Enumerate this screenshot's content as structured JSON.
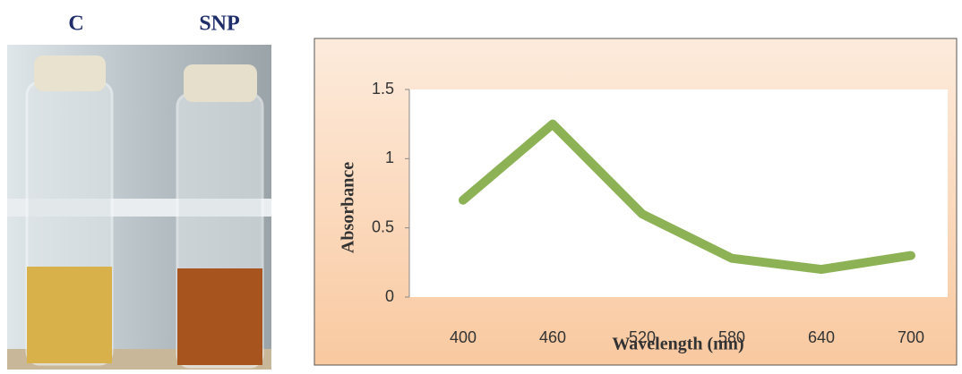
{
  "photo": {
    "labels": [
      "C",
      "SNP"
    ]
  },
  "chart_data": {
    "type": "line",
    "x_label": "Wavelength (nm)",
    "y_label": "Absorbance",
    "categories": [
      400,
      460,
      520,
      580,
      640,
      700
    ],
    "series": [
      {
        "name": "Absorbance",
        "color": "#8db255",
        "values": [
          0.7,
          1.25,
          0.6,
          0.28,
          0.2,
          0.3
        ]
      }
    ],
    "ylim": [
      0,
      1.5
    ],
    "yticks": [
      0,
      0.5,
      1,
      1.5
    ]
  }
}
